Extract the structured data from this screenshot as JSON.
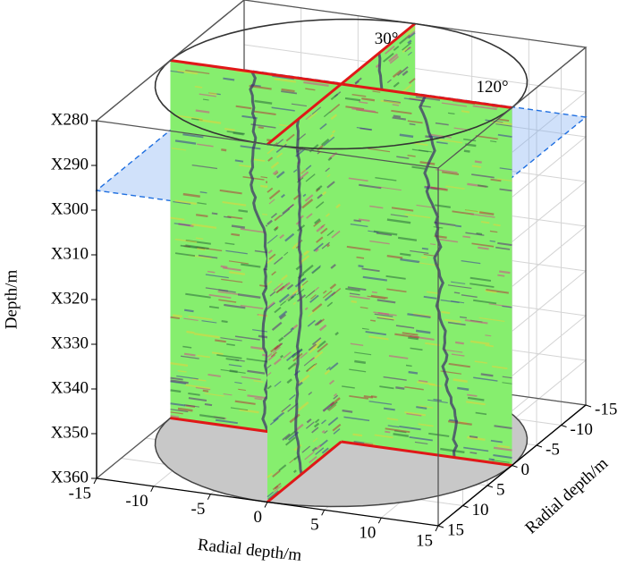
{
  "chart_data": {
    "type": "3d-section",
    "xlabel": "Radial depth/m",
    "ylabel": "Radial depth/m",
    "zlabel": "Depth/m",
    "xlim": [
      -15,
      15
    ],
    "ylim": [
      -15,
      15
    ],
    "zlim": [
      280,
      360
    ],
    "xticks": [
      -15,
      -10,
      -5,
      0,
      5,
      10,
      15
    ],
    "yticks": [
      -15,
      -10,
      -5,
      0,
      5,
      10,
      15
    ],
    "zticks": [
      {
        "value": 280,
        "label": "X280"
      },
      {
        "value": 290,
        "label": "X290"
      },
      {
        "value": 300,
        "label": "X300"
      },
      {
        "value": 310,
        "label": "X310"
      },
      {
        "value": 320,
        "label": "X320"
      },
      {
        "value": 330,
        "label": "X330"
      },
      {
        "value": 340,
        "label": "X340"
      },
      {
        "value": 350,
        "label": "X350"
      },
      {
        "value": 360,
        "label": "X360"
      }
    ],
    "annotations": [
      "30°",
      "120°"
    ],
    "grid": true
  }
}
